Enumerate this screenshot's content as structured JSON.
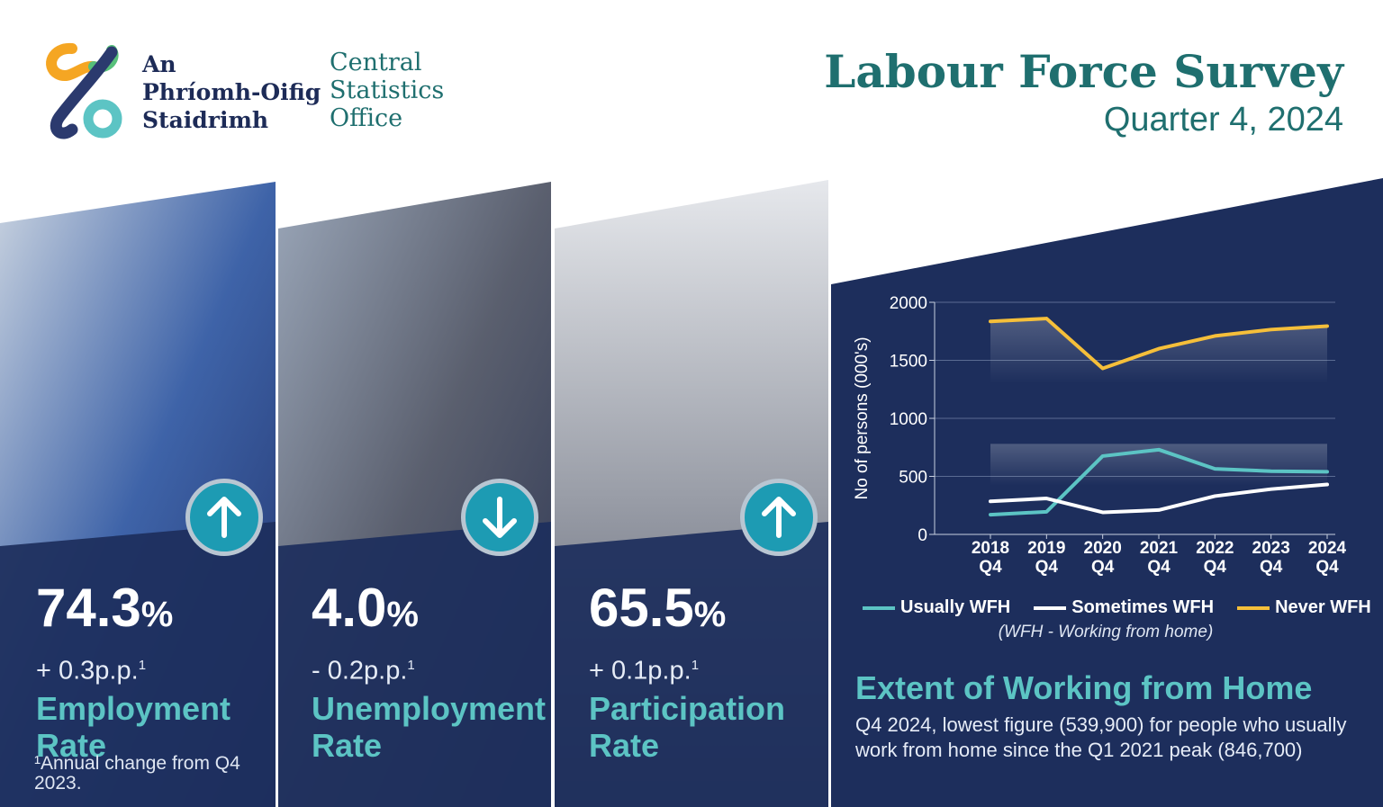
{
  "header": {
    "org_irish": [
      "An",
      "Phríomh-Oifig",
      "Staidrimh"
    ],
    "org_english": [
      "Central",
      "Statistics",
      "Office"
    ],
    "title": "Labour Force Survey",
    "subtitle": "Quarter 4, 2024"
  },
  "colors": {
    "navy": "#1d2e5c",
    "teal": "#5cc4c4",
    "arrow_blue": "#1d9bb3",
    "white": "#ffffff",
    "yellow": "#f5bf3a",
    "logo_orange": "#f5a623",
    "logo_green": "#57c07a",
    "logo_navy": "#2b3a6e"
  },
  "stats": [
    {
      "value": "74.3",
      "unit": "%",
      "change": "+ 0.3p.p.",
      "note_mark": "1",
      "label_line1": "Employment",
      "label_line2": "Rate",
      "direction": "up",
      "arrow_icon": "arrow-up-icon"
    },
    {
      "value": "4.0",
      "unit": "%",
      "change": "- 0.2p.p.",
      "note_mark": "1",
      "label_line1": "Unemployment",
      "label_line2": "Rate",
      "direction": "down",
      "arrow_icon": "arrow-down-icon"
    },
    {
      "value": "65.5",
      "unit": "%",
      "change": "+ 0.1p.p.",
      "note_mark": "1",
      "label_line1": "Participation",
      "label_line2": "Rate",
      "direction": "up",
      "arrow_icon": "arrow-up-icon"
    }
  ],
  "footnote": "¹Annual change from Q4 2023.",
  "chart_data": {
    "type": "line",
    "categories": [
      "2018 Q4",
      "2019 Q4",
      "2020 Q4",
      "2021 Q4",
      "2022 Q4",
      "2023 Q4",
      "2024 Q4"
    ],
    "category_lines": [
      [
        "2018",
        "Q4"
      ],
      [
        "2019",
        "Q4"
      ],
      [
        "2020",
        "Q4"
      ],
      [
        "2021",
        "Q4"
      ],
      [
        "2022",
        "Q4"
      ],
      [
        "2023",
        "Q4"
      ],
      [
        "2024",
        "Q4"
      ]
    ],
    "series": [
      {
        "name": "Usually WFH",
        "color": "#5cc4c4",
        "values": [
          170,
          195,
          675,
          730,
          565,
          545,
          540
        ]
      },
      {
        "name": "Sometimes WFH",
        "color": "#ffffff",
        "values": [
          285,
          310,
          190,
          210,
          330,
          390,
          430
        ]
      },
      {
        "name": "Never WFH",
        "color": "#f5bf3a",
        "values": [
          1835,
          1860,
          1430,
          1600,
          1710,
          1765,
          1795
        ]
      }
    ],
    "ylabel": "No of persons (000's)",
    "ylim": [
      0,
      2000
    ],
    "yticks": [
      0,
      500,
      1000,
      1500,
      2000
    ],
    "grid": true,
    "legend_position": "bottom",
    "legend_note": "(WFH - Working from home)"
  },
  "section": {
    "title": "Extent of Working from Home",
    "text": "Q4 2024, lowest figure (539,900) for people who usually work from home since the Q1 2021 peak (846,700)"
  }
}
